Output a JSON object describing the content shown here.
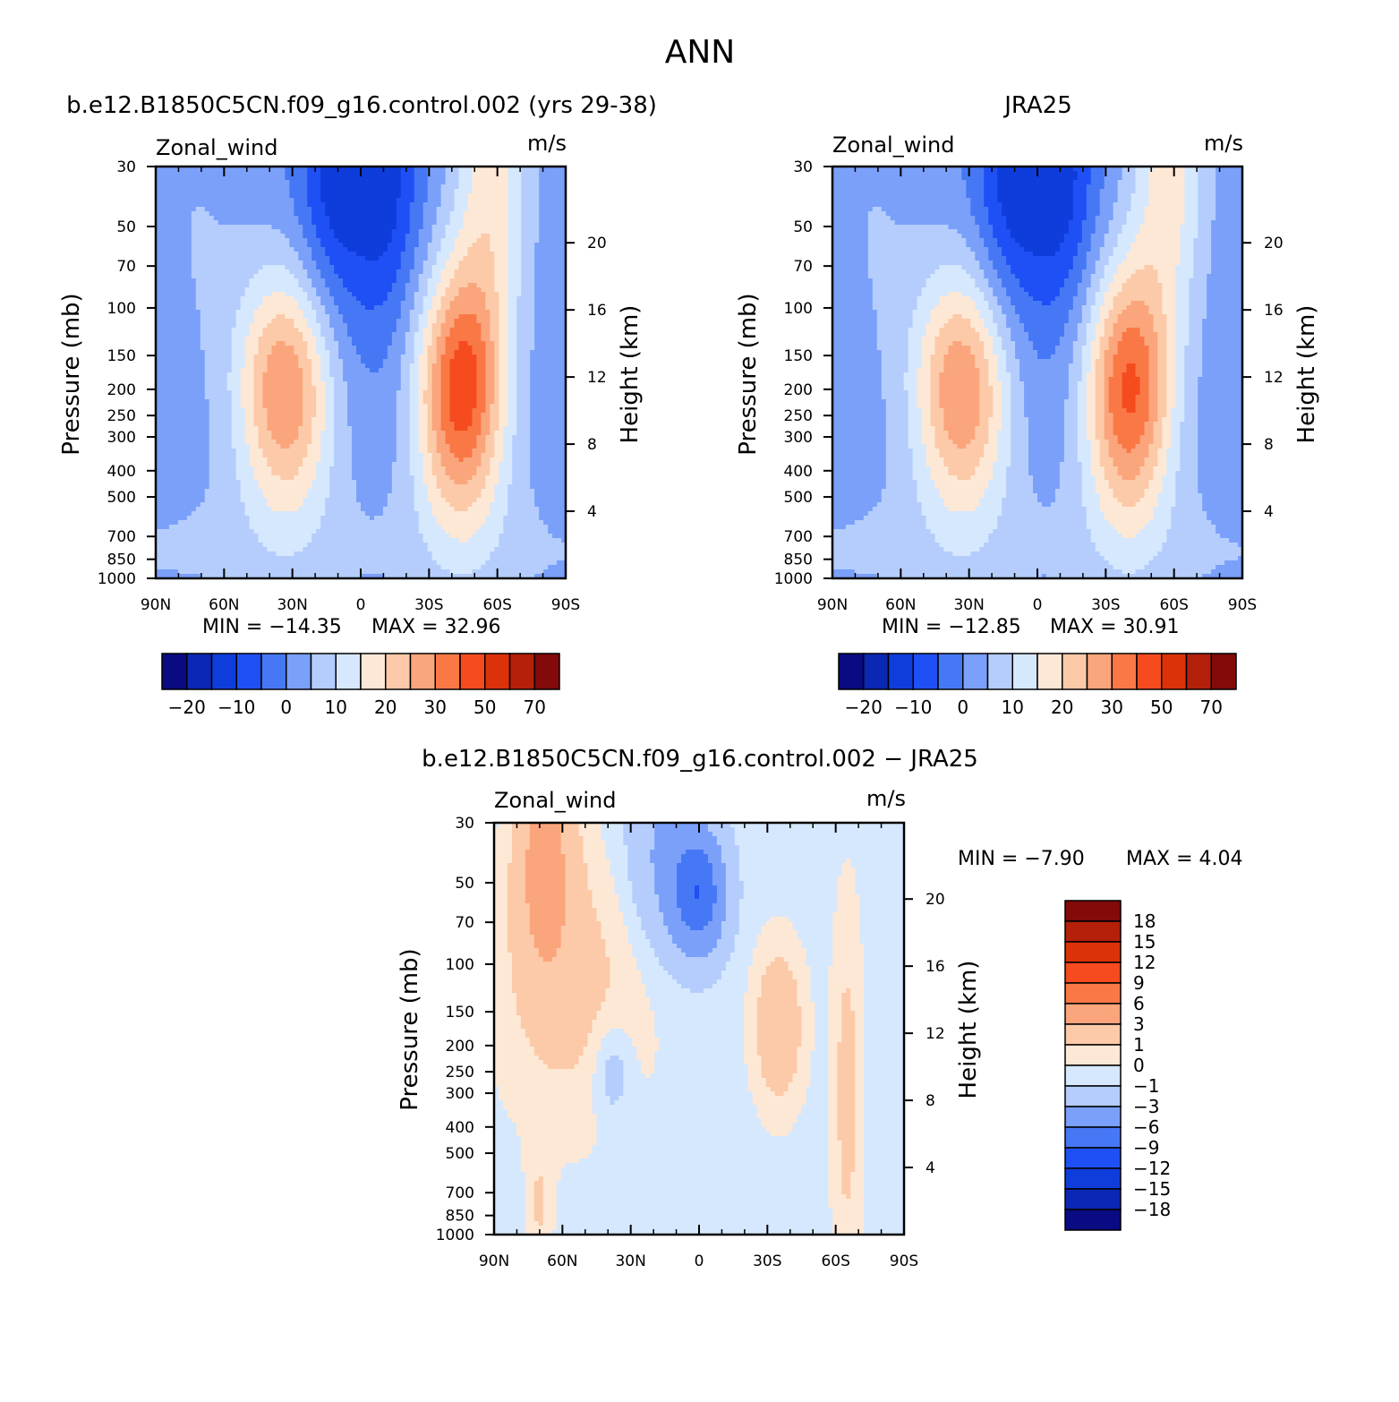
{
  "figure_title": "ANN",
  "colors": {
    "main_palette": [
      "#0a0a82",
      "#0a28b4",
      "#0f3ddc",
      "#1e50f5",
      "#4678f5",
      "#7aa0fa",
      "#b4cdfc",
      "#d6e8fd",
      "#fde8d6",
      "#fccaa8",
      "#fba57c",
      "#fa7846",
      "#f54b1e",
      "#dc320a",
      "#b4200a",
      "#820a0a"
    ],
    "diff_palette": [
      "#0a0a82",
      "#0a28b4",
      "#0f3ddc",
      "#1e50f5",
      "#4678f5",
      "#7aa0fa",
      "#b4cdfc",
      "#d6e8fd",
      "#fde8d6",
      "#fccaa8",
      "#fba57c",
      "#fa7846",
      "#f54b1e",
      "#dc320a",
      "#b4200a",
      "#820a0a"
    ]
  },
  "chart_data": [
    {
      "type": "heatmap",
      "panel": "model",
      "title": "b.e12.B1850C5CN.f09_g16.control.002 (yrs 29-38)",
      "variable": "Zonal_wind",
      "units": "m/s",
      "ylabel": "Pressure (mb)",
      "ylabel_right": "Height (km)",
      "x_ticks": [
        "90N",
        "60N",
        "30N",
        "0",
        "30S",
        "60S",
        "90S"
      ],
      "x_range": [
        90,
        -90
      ],
      "y_ticks": [
        30,
        50,
        70,
        100,
        150,
        200,
        250,
        300,
        400,
        500,
        700,
        850,
        1000
      ],
      "y_range": [
        30,
        1000
      ],
      "height_ticks_km": [
        4,
        8,
        12,
        16,
        20
      ],
      "min_label": "MIN = −14.35",
      "max_label": "MAX =  32.96",
      "min": -14.35,
      "max": 32.96,
      "colorbar_labels": [
        "−20",
        "−10",
        "0",
        "10",
        "20",
        "30",
        "50",
        "70"
      ],
      "jets": [
        {
          "lat": 33,
          "p": 200,
          "speed": 25
        },
        {
          "lat": -44,
          "p": 200,
          "speed": 33
        }
      ]
    },
    {
      "type": "heatmap",
      "panel": "obs",
      "title": "JRA25",
      "variable": "Zonal_wind",
      "units": "m/s",
      "ylabel": "Pressure (mb)",
      "ylabel_right": "Height (km)",
      "x_ticks": [
        "90N",
        "60N",
        "30N",
        "0",
        "30S",
        "60S",
        "90S"
      ],
      "x_range": [
        90,
        -90
      ],
      "y_ticks": [
        30,
        50,
        70,
        100,
        150,
        200,
        250,
        300,
        400,
        500,
        700,
        850,
        1000
      ],
      "y_range": [
        30,
        1000
      ],
      "height_ticks_km": [
        4,
        8,
        12,
        16,
        20
      ],
      "min_label": "MIN = −12.85",
      "max_label": "MAX =  30.91",
      "min": -12.85,
      "max": 30.91,
      "colorbar_labels": [
        "−20",
        "−10",
        "0",
        "10",
        "20",
        "30",
        "50",
        "70"
      ],
      "jets": [
        {
          "lat": 33,
          "p": 200,
          "speed": 25
        },
        {
          "lat": -40,
          "p": 200,
          "speed": 31
        }
      ]
    },
    {
      "type": "heatmap",
      "panel": "difference",
      "title": "b.e12.B1850C5CN.f09_g16.control.002 − JRA25",
      "variable": "Zonal_wind",
      "units": "m/s",
      "ylabel": "Pressure (mb)",
      "ylabel_right": "Height (km)",
      "x_ticks": [
        "90N",
        "60N",
        "30N",
        "0",
        "30S",
        "60S",
        "90S"
      ],
      "x_range": [
        90,
        -90
      ],
      "y_ticks": [
        30,
        50,
        70,
        100,
        150,
        200,
        250,
        300,
        400,
        500,
        700,
        850,
        1000
      ],
      "y_range": [
        30,
        1000
      ],
      "height_ticks_km": [
        4,
        8,
        12,
        16,
        20
      ],
      "min_label": "MIN =   −7.90",
      "max_label": "MAX =    4.04",
      "min": -7.9,
      "max": 4.04,
      "colorbar_labels": [
        "18",
        "15",
        "12",
        "9",
        "6",
        "3",
        "1",
        "0",
        "−1",
        "−3",
        "−6",
        "−9",
        "−12",
        "−15",
        "−18"
      ]
    }
  ]
}
